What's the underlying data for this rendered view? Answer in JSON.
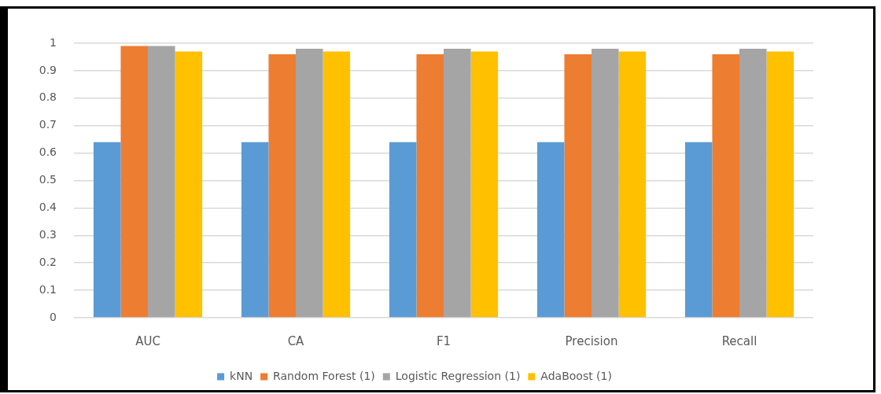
{
  "chart_data": {
    "type": "bar",
    "categories": [
      "AUC",
      "CA",
      "F1",
      "Precision",
      "Recall"
    ],
    "series": [
      {
        "name": "kNN",
        "color": "#5b9bd5",
        "values": [
          0.64,
          0.64,
          0.64,
          0.64,
          0.64
        ]
      },
      {
        "name": "Random Forest (1)",
        "color": "#ed7d31",
        "values": [
          0.99,
          0.96,
          0.96,
          0.96,
          0.96
        ]
      },
      {
        "name": "Logistic Regression (1)",
        "color": "#a5a5a5",
        "values": [
          0.99,
          0.98,
          0.98,
          0.98,
          0.98
        ]
      },
      {
        "name": "AdaBoost (1)",
        "color": "#ffc000",
        "values": [
          0.97,
          0.97,
          0.97,
          0.97,
          0.97
        ]
      }
    ],
    "ylim": [
      0,
      1
    ],
    "yticks": [
      0,
      0.1,
      0.2,
      0.3,
      0.4,
      0.5,
      0.6,
      0.7,
      0.8,
      0.9,
      1
    ],
    "grid": "y",
    "legend": "bottom"
  }
}
